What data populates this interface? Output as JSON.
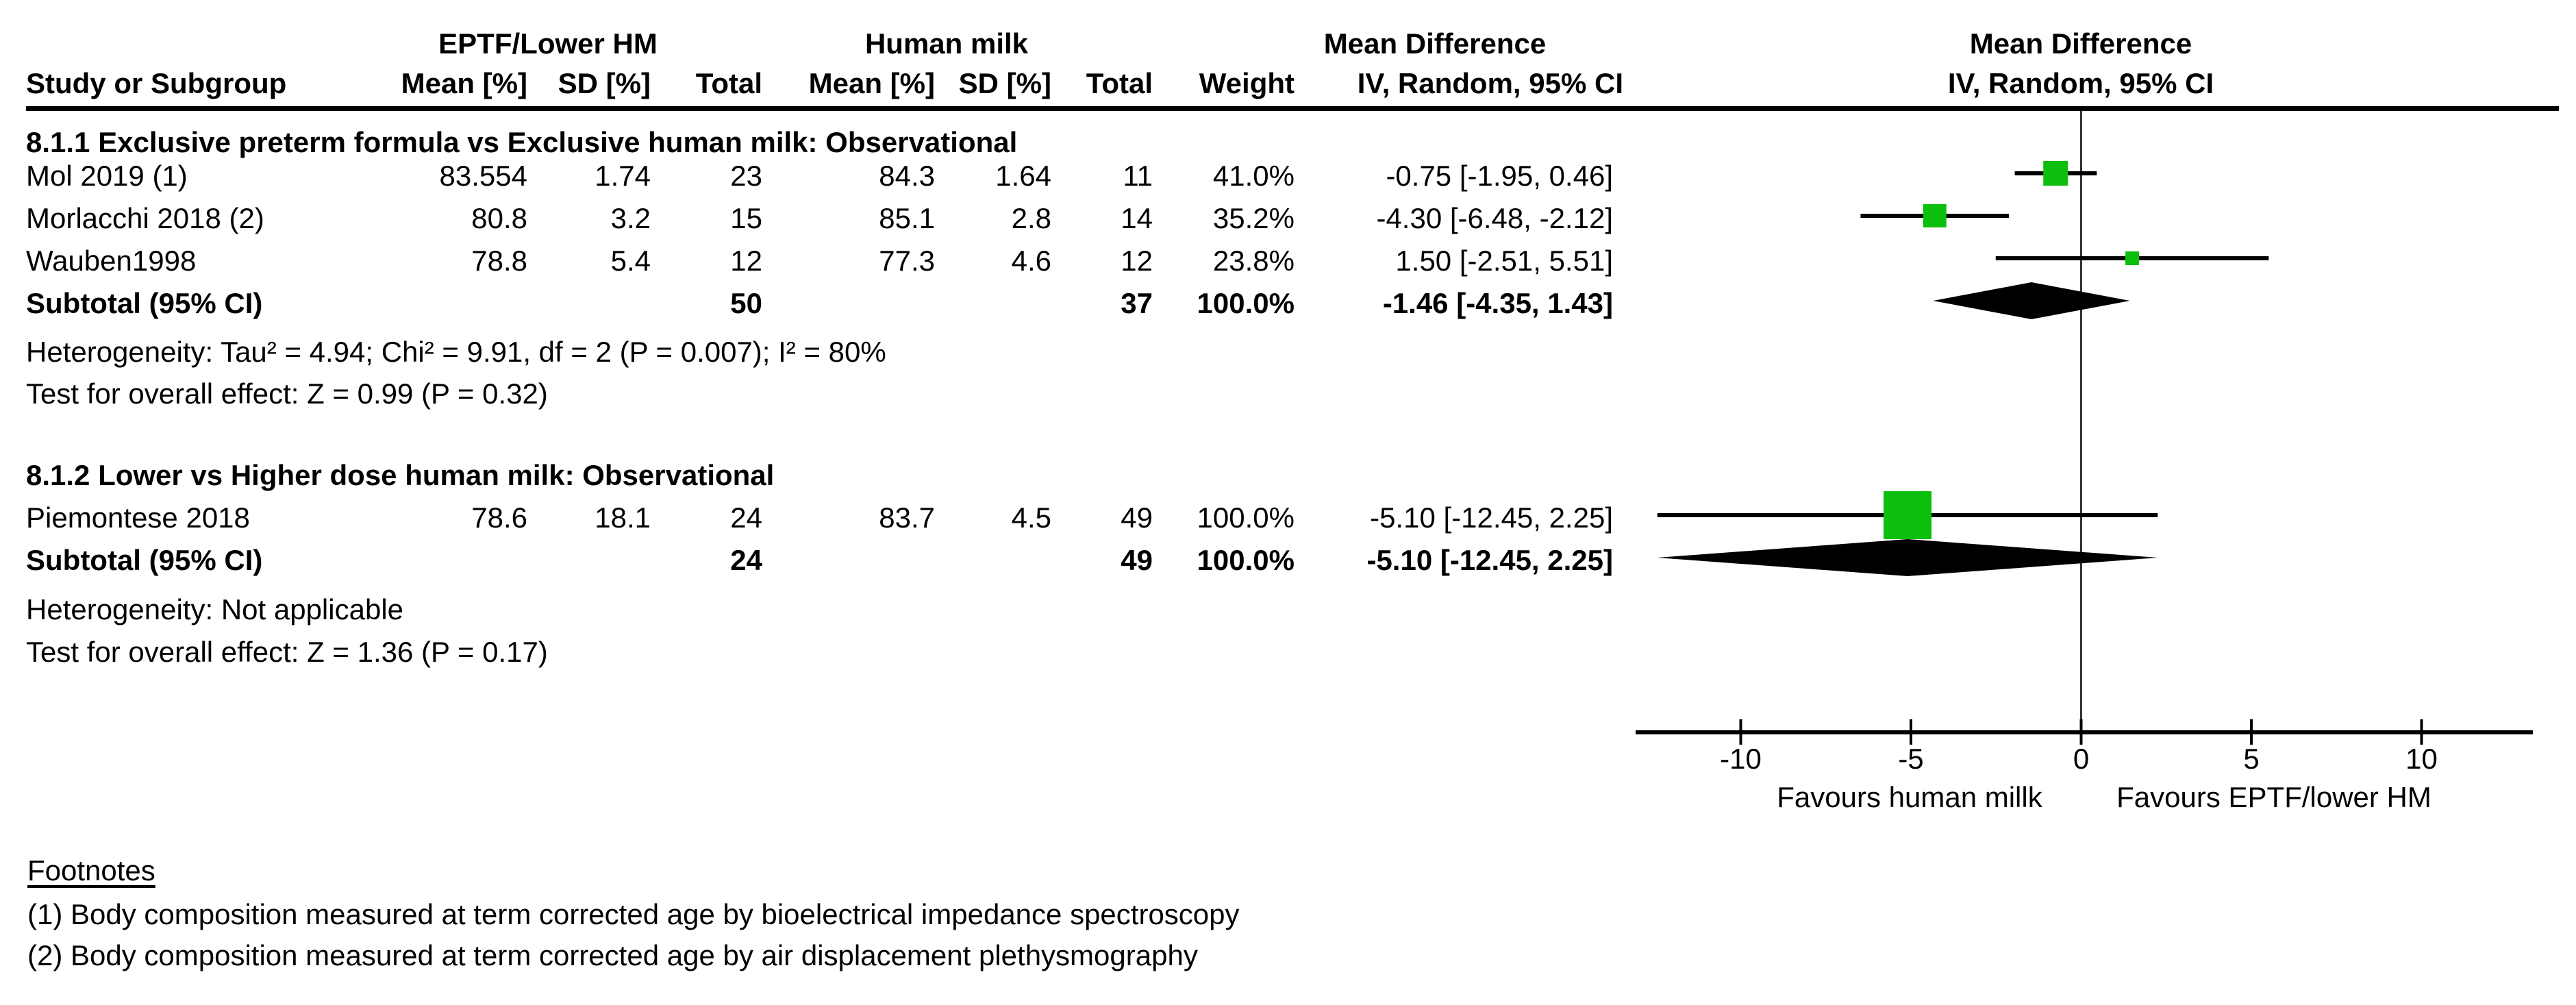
{
  "header": {
    "group1_label": "EPTF/Lower HM",
    "group2_label": "Human milk",
    "md_left_label": "Mean Difference",
    "md_right_line1": "Mean Difference",
    "md_right_line2": "IV, Random, 95% CI",
    "columns": {
      "study": "Study or Subgroup",
      "mean1": "Mean [%]",
      "sd1": "SD [%]",
      "total1": "Total",
      "mean2": "Mean [%]",
      "sd2": "SD [%]",
      "total2": "Total",
      "weight": "Weight",
      "ci": "IV, Random, 95% CI"
    }
  },
  "chart_data": {
    "type": "forest",
    "effect_measure": "Mean Difference, IV, Random, 95% CI",
    "axis": {
      "ticks": [
        -10,
        -5,
        0,
        5,
        10
      ],
      "min": -13.1,
      "max": 13.3,
      "label_left": "Favours human millk",
      "label_right": "Favours EPTF/lower HM"
    },
    "subgroups": [
      {
        "title": "8.1.1 Exclusive preterm formula vs Exclusive human milk: Observational",
        "studies": [
          {
            "name": "Mol 2019 (1)",
            "mean1": "83.554",
            "sd1": "1.74",
            "total1": "23",
            "mean2": "84.3",
            "sd2": "1.64",
            "total2": "11",
            "weight": "41.0%",
            "ci_text": "-0.75 [-1.95, 0.46]",
            "est": -0.75,
            "lo": -1.95,
            "hi": 0.46,
            "marker_px": 36
          },
          {
            "name": "Morlacchi 2018 (2)",
            "mean1": "80.8",
            "sd1": "3.2",
            "total1": "15",
            "mean2": "85.1",
            "sd2": "2.8",
            "total2": "14",
            "weight": "35.2%",
            "ci_text": "-4.30 [-6.48, -2.12]",
            "est": -4.3,
            "lo": -6.48,
            "hi": -2.12,
            "marker_px": 34
          },
          {
            "name": "Wauben1998",
            "mean1": "78.8",
            "sd1": "5.4",
            "total1": "12",
            "mean2": "77.3",
            "sd2": "4.6",
            "total2": "12",
            "weight": "23.8%",
            "ci_text": "1.50 [-2.51, 5.51]",
            "est": 1.5,
            "lo": -2.51,
            "hi": 5.51,
            "marker_px": 20
          }
        ],
        "subtotal": {
          "label": "Subtotal (95% CI)",
          "total1": "50",
          "total2": "37",
          "weight": "100.0%",
          "ci_text": "-1.46 [-4.35, 1.43]",
          "est": -1.46,
          "lo": -4.35,
          "hi": 1.43
        },
        "heterogeneity": "Heterogeneity: Tau² = 4.94; Chi² = 9.91, df = 2 (P = 0.007); I² = 80%",
        "overall_effect": "Test for overall effect: Z = 0.99 (P = 0.32)"
      },
      {
        "title": "8.1.2 Lower vs Higher dose human milk: Observational",
        "studies": [
          {
            "name": "Piemontese 2018",
            "mean1": "78.6",
            "sd1": "18.1",
            "total1": "24",
            "mean2": "83.7",
            "sd2": "4.5",
            "total2": "49",
            "weight": "100.0%",
            "ci_text": "-5.10 [-12.45, 2.25]",
            "est": -5.1,
            "lo": -12.45,
            "hi": 2.25,
            "marker_px": 70
          }
        ],
        "subtotal": {
          "label": "Subtotal (95% CI)",
          "total1": "24",
          "total2": "49",
          "weight": "100.0%",
          "ci_text": "-5.10 [-12.45, 2.25]",
          "est": -5.1,
          "lo": -12.45,
          "hi": 2.25
        },
        "heterogeneity": "Heterogeneity: Not applicable",
        "overall_effect": "Test for overall effect: Z = 1.36 (P = 0.17)"
      }
    ]
  },
  "footnotes": {
    "title": "Footnotes",
    "items": [
      "(1) Body composition measured at term corrected age by bioelectrical impedance spectroscopy",
      "(2) Body composition measured at term corrected age by air displacement plethysmography"
    ]
  },
  "colors": {
    "marker_green": "#0dbf0d",
    "diamond_black": "#000000",
    "line_dark": "#333333"
  }
}
